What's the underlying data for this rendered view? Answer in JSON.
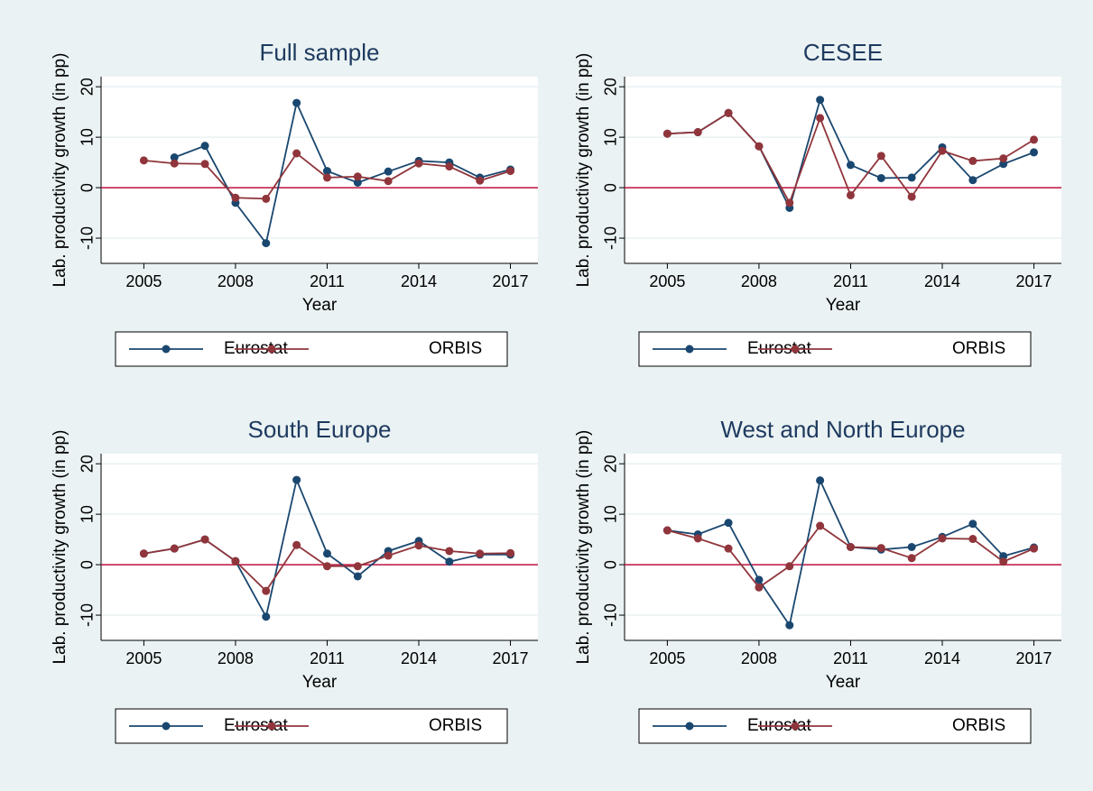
{
  "chart_data": [
    {
      "type": "line",
      "title": "Full sample",
      "x_label": "Year",
      "y_label": "Lab. productivity growth (in pp)",
      "x": [
        2005,
        2006,
        2007,
        2008,
        2009,
        2010,
        2011,
        2012,
        2013,
        2014,
        2015,
        2016,
        2017
      ],
      "series": [
        {
          "name": "Eurostat",
          "color": "#1a476f",
          "values": [
            null,
            6,
            8.3,
            -3,
            -11,
            16.8,
            3.3,
            1,
            3.2,
            5.3,
            5,
            2,
            3.6
          ]
        },
        {
          "name": "ORBIS",
          "color": "#90353b",
          "values": [
            5.4,
            4.8,
            4.7,
            -2,
            -2.2,
            6.8,
            2,
            2.2,
            1.3,
            4.8,
            4.2,
            1.4,
            3.3
          ]
        }
      ],
      "xlim": [
        2003.6,
        2017.9
      ],
      "ylim": [
        -15,
        22
      ],
      "xticks": [
        2005,
        2008,
        2011,
        2014,
        2017
      ],
      "yticks": [
        -10,
        0,
        10,
        20
      ],
      "grid": true,
      "reference_line": 0,
      "reference_color": "#c1123f"
    },
    {
      "type": "line",
      "title": "CESEE",
      "x_label": "Year",
      "y_label": "Lab. productivity growth (in pp)",
      "x": [
        2005,
        2006,
        2007,
        2008,
        2009,
        2010,
        2011,
        2012,
        2013,
        2014,
        2015,
        2016,
        2017
      ],
      "series": [
        {
          "name": "Eurostat",
          "color": "#1a476f",
          "values": [
            10.7,
            11,
            14.8,
            8.2,
            -4,
            17.4,
            4.5,
            1.9,
            2,
            8,
            1.5,
            4.7,
            7
          ]
        },
        {
          "name": "ORBIS",
          "color": "#90353b",
          "values": [
            10.7,
            11,
            14.8,
            8.2,
            -3,
            13.8,
            -1.5,
            6.3,
            -1.8,
            7.3,
            5.3,
            5.8,
            9.5
          ]
        }
      ],
      "xlim": [
        2003.6,
        2017.9
      ],
      "ylim": [
        -15,
        22
      ],
      "xticks": [
        2005,
        2008,
        2011,
        2014,
        2017
      ],
      "yticks": [
        -10,
        0,
        10,
        20
      ],
      "grid": true,
      "reference_line": 0,
      "reference_color": "#c1123f"
    },
    {
      "type": "line",
      "title": "South Europe",
      "x_label": "Year",
      "y_label": "Lab. productivity growth (in pp)",
      "x": [
        2005,
        2006,
        2007,
        2008,
        2009,
        2010,
        2011,
        2012,
        2013,
        2014,
        2015,
        2016,
        2017
      ],
      "series": [
        {
          "name": "Eurostat",
          "color": "#1a476f",
          "values": [
            2.2,
            3.2,
            5,
            0.7,
            -10.3,
            16.8,
            2.2,
            -2.3,
            2.7,
            4.7,
            0.6,
            2,
            2
          ]
        },
        {
          "name": "ORBIS",
          "color": "#90353b",
          "values": [
            2.2,
            3.2,
            5,
            0.7,
            -5.2,
            3.9,
            -0.3,
            -0.3,
            1.8,
            3.8,
            2.7,
            2.2,
            2.3
          ]
        }
      ],
      "xlim": [
        2003.6,
        2017.9
      ],
      "ylim": [
        -15,
        22
      ],
      "xticks": [
        2005,
        2008,
        2011,
        2014,
        2017
      ],
      "yticks": [
        -10,
        0,
        10,
        20
      ],
      "grid": true,
      "reference_line": 0,
      "reference_color": "#c1123f"
    },
    {
      "type": "line",
      "title": "West and North Europe",
      "x_label": "Year",
      "y_label": "Lab. productivity growth (in pp)",
      "x": [
        2005,
        2006,
        2007,
        2008,
        2009,
        2010,
        2011,
        2012,
        2013,
        2014,
        2015,
        2016,
        2017
      ],
      "series": [
        {
          "name": "Eurostat",
          "color": "#1a476f",
          "values": [
            6.8,
            6,
            8.3,
            -3,
            -12,
            16.7,
            3.5,
            3,
            3.5,
            5.5,
            8.1,
            1.7,
            3.4
          ]
        },
        {
          "name": "ORBIS",
          "color": "#90353b",
          "values": [
            6.8,
            5.2,
            3.2,
            -4.5,
            -0.3,
            7.7,
            3.5,
            3.3,
            1.3,
            5.2,
            5.1,
            0.6,
            3.2
          ]
        }
      ],
      "xlim": [
        2003.6,
        2017.9
      ],
      "ylim": [
        -15,
        22
      ],
      "xticks": [
        2005,
        2008,
        2011,
        2014,
        2017
      ],
      "yticks": [
        -10,
        0,
        10,
        20
      ],
      "grid": true,
      "reference_line": 0,
      "reference_color": "#c1123f"
    }
  ]
}
